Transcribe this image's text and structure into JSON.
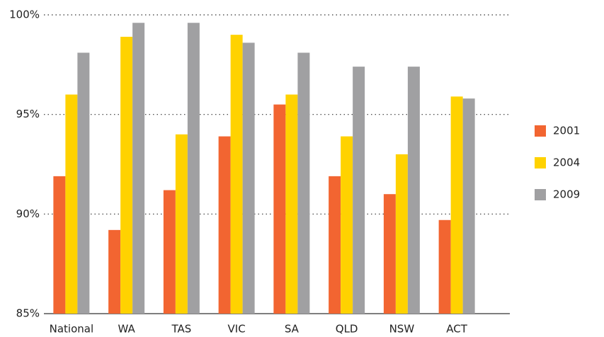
{
  "chart_data": {
    "type": "bar",
    "categories": [
      "National",
      "WA",
      "TAS",
      "VIC",
      "SA",
      "QLD",
      "NSW",
      "ACT"
    ],
    "series": [
      {
        "name": "2001",
        "color": "#f26531",
        "values": [
          91.9,
          89.2,
          91.2,
          93.9,
          95.5,
          91.9,
          91.0,
          89.7
        ]
      },
      {
        "name": "2004",
        "color": "#ffd200",
        "values": [
          96.0,
          98.9,
          94.0,
          99.0,
          96.0,
          93.9,
          93.0,
          95.9
        ]
      },
      {
        "name": "2009",
        "color": "#a0a0a2",
        "values": [
          98.1,
          99.6,
          99.6,
          98.6,
          98.1,
          97.4,
          97.4,
          95.8
        ]
      }
    ],
    "ylim": [
      85,
      100
    ],
    "yticks": [
      {
        "value": 85,
        "label": "85%"
      },
      {
        "value": 90,
        "label": "90%"
      },
      {
        "value": 95,
        "label": "95%"
      },
      {
        "value": 100,
        "label": "100%"
      }
    ],
    "grid": true,
    "legend": "right"
  }
}
